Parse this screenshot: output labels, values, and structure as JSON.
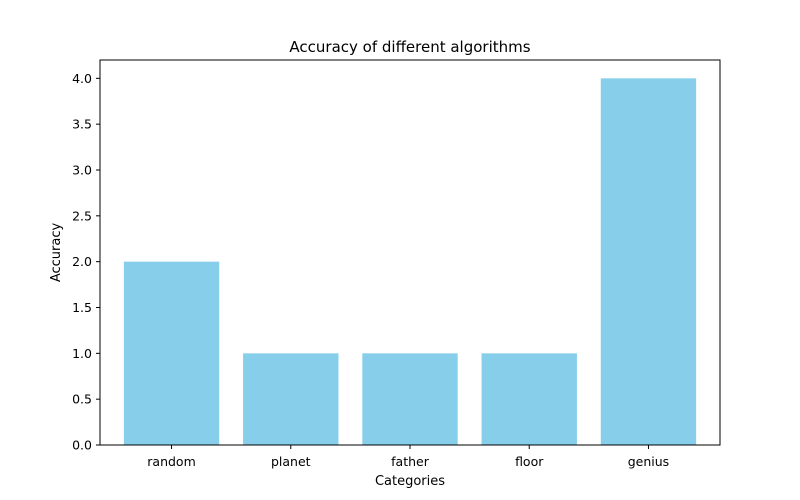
{
  "chart_data": {
    "type": "bar",
    "title": "Accuracy of different algorithms",
    "xlabel": "Categories",
    "ylabel": "Accuracy",
    "categories": [
      "random",
      "planet",
      "father",
      "floor",
      "genius"
    ],
    "values": [
      2,
      1,
      1,
      1,
      4
    ],
    "ylim": [
      0,
      4.2
    ],
    "yticks": [
      "0.0",
      "0.5",
      "1.0",
      "1.5",
      "2.0",
      "2.5",
      "3.0",
      "3.5",
      "4.0"
    ],
    "bar_color": "#87ceeb",
    "grid": false,
    "legend": "none"
  }
}
